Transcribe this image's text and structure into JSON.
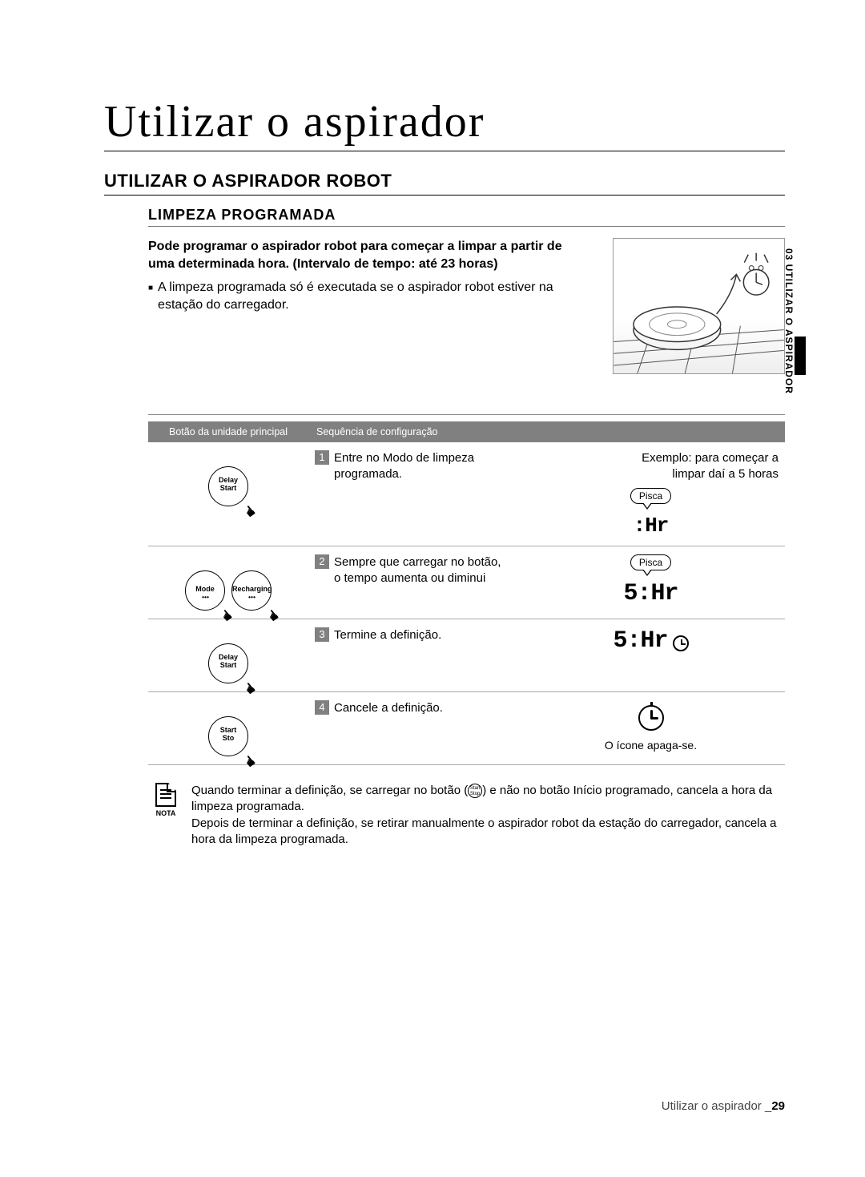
{
  "main_title": "Utilizar o aspirador",
  "section_title": "UTILIZAR O ASPIRADOR ROBOT",
  "sub_title": "LIMPEZA PROGRAMADA",
  "intro": {
    "bold": "Pode programar o aspirador robot para começar a limpar a partir de uma determinada hora. (Intervalo de tempo: até 23 horas)",
    "bullet": "A limpeza programada só é executada se o aspirador robot estiver na estação do carregador."
  },
  "side_tab": "03  UTILIZAR O ASPIRADOR",
  "table": {
    "headers": [
      "Botão da unidade principal",
      "Sequência de configuração",
      ""
    ],
    "rows": [
      {
        "buttons": [
          {
            "l1": "Delay",
            "l2": "Start"
          }
        ],
        "step_num": "1",
        "step_text": "Entre no Modo de limpeza programada.",
        "example_header_1": "Exemplo: para começar a",
        "example_header_2": "limpar daí a 5 horas",
        "pisca": "Pisca",
        "seg": ":Hr",
        "show_blink_dots": true
      },
      {
        "buttons": [
          {
            "l1": "Mode",
            "dots": true
          },
          {
            "l1": "Recharging",
            "dots": true
          }
        ],
        "step_num": "2",
        "step_text": "Sempre que carregar no botão, o tempo aumenta ou diminui",
        "pisca": "Pisca",
        "seg": "5:Hr"
      },
      {
        "buttons": [
          {
            "l1": "Delay",
            "l2": "Start"
          }
        ],
        "step_num": "3",
        "step_text": "Termine a definição.",
        "seg": "5:Hr",
        "clock_small": true
      },
      {
        "buttons": [
          {
            "l1": "Start",
            "l2": "Sto"
          }
        ],
        "step_num": "4",
        "step_text": "Cancele a definição.",
        "clock_big": true,
        "icon_off": "O ícone apaga-se."
      }
    ]
  },
  "note": {
    "label": "NOTA",
    "text_1a": "Quando terminar a definição, se carregar no botão (",
    "text_1b": ") e não no botão Início programado, cancela a hora da limpeza programada.",
    "text_2": "Depois de terminar a definição, se retirar manualmente o aspirador robot da estação do carregador, cancela a hora da limpeza programada."
  },
  "footer": {
    "text": "Utilizar o aspirador _",
    "page": "29"
  }
}
